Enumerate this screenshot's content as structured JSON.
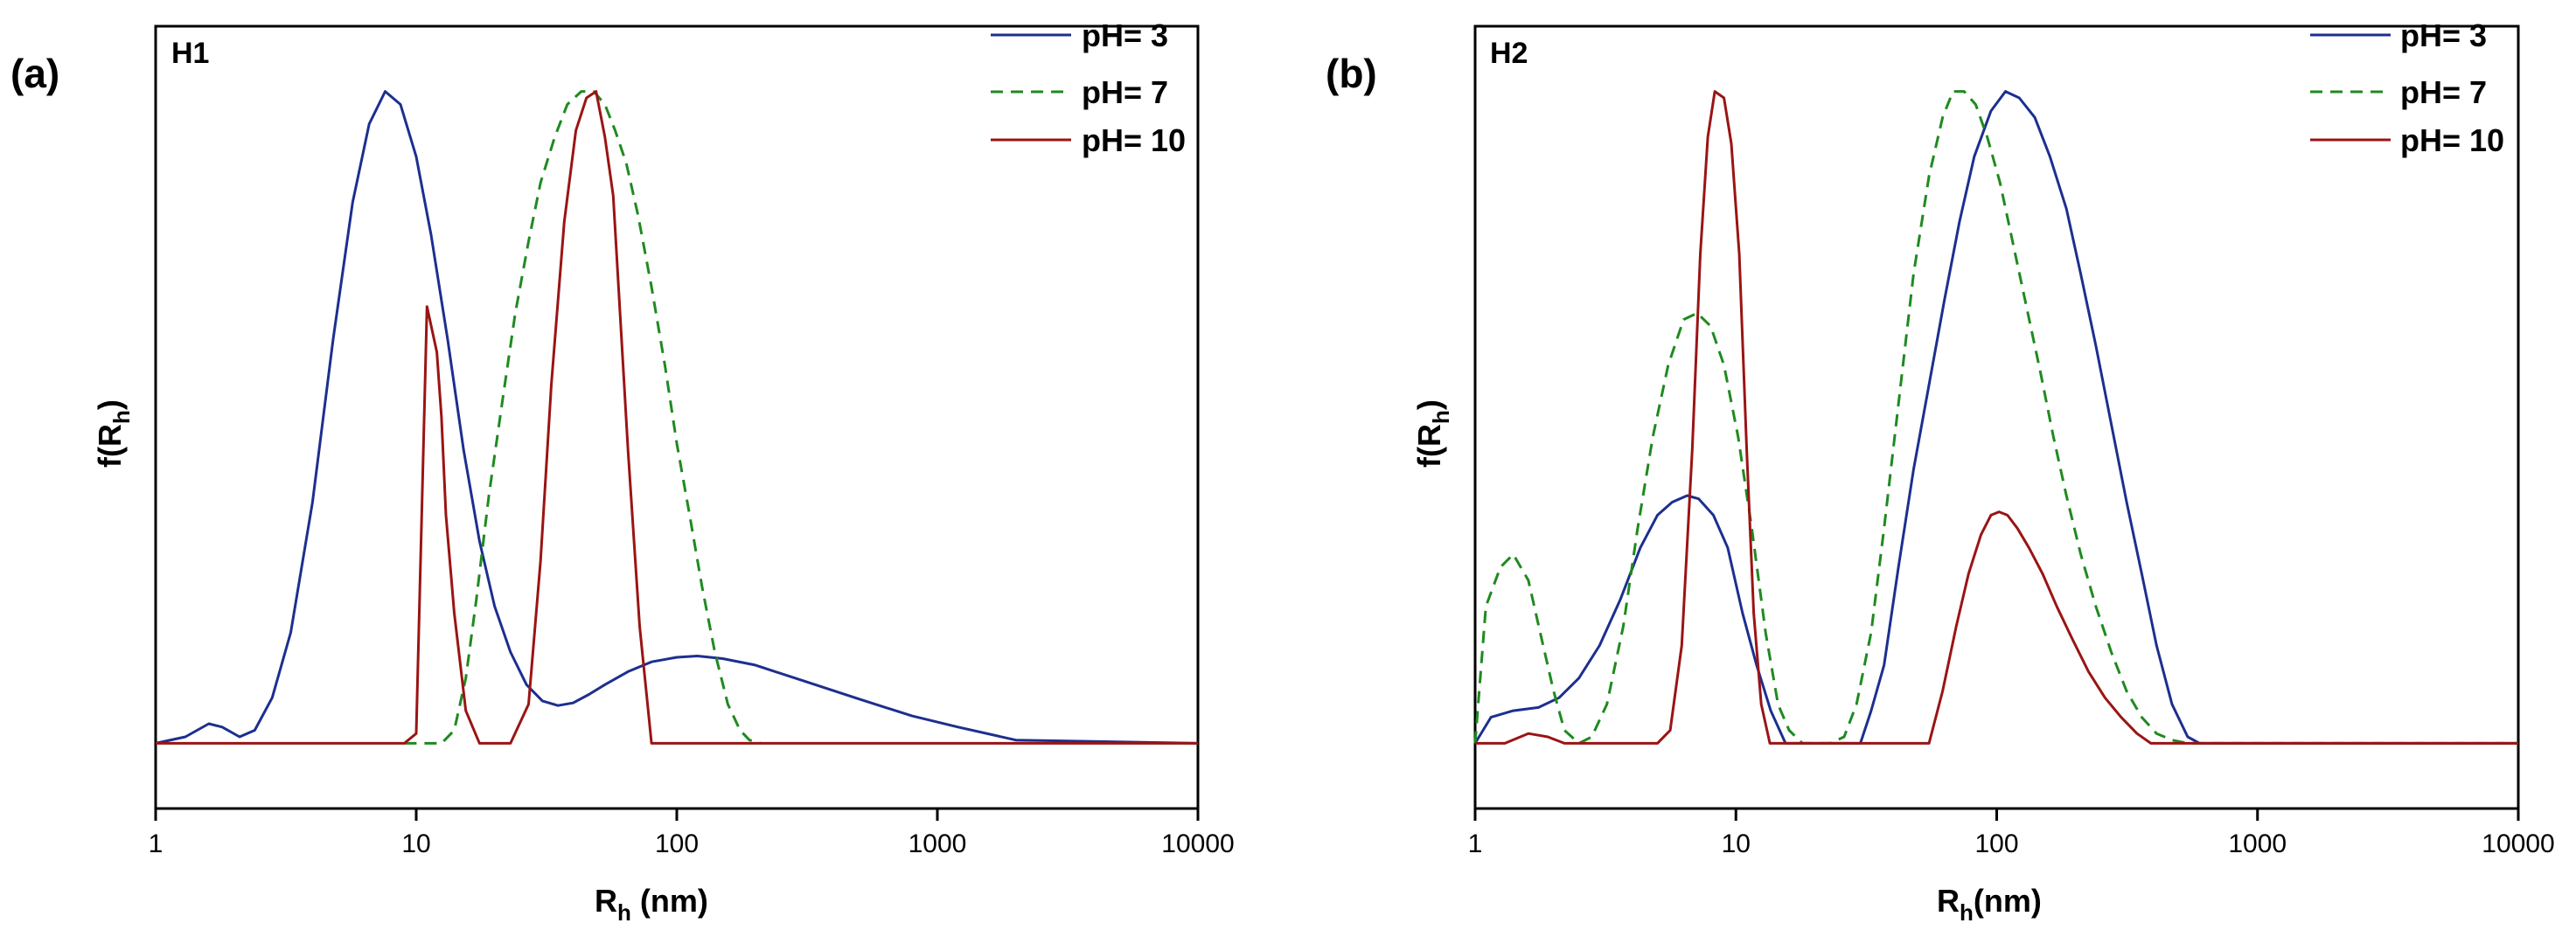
{
  "chart_data": [
    {
      "type": "line",
      "panel_label": "(a)",
      "title": "H1",
      "xlabel": "R",
      "xlabel_sub": "h",
      "xlabel_units": " (nm)",
      "ylabel": "f(R",
      "ylabel_sub": "h",
      "ylabel_close": ")",
      "xscale": "log",
      "xlim": [
        1,
        10000
      ],
      "ylim": [
        -0.1,
        1.1
      ],
      "x_ticks": [
        1,
        10,
        100,
        1000,
        10000
      ],
      "x_tick_labels": [
        "1",
        "10",
        "100",
        "1000",
        "10000"
      ],
      "y_ticks_shown": false,
      "legend_position": "top-right",
      "series": [
        {
          "name": "pH= 3",
          "color": "#1c2f8f",
          "dash": "solid",
          "x": [
            1,
            1.3,
            1.6,
            1.8,
            2.1,
            2.4,
            2.8,
            3.3,
            4,
            4.8,
            5.7,
            6.6,
            7.6,
            8.7,
            10,
            11.4,
            13.2,
            15.2,
            17.5,
            20,
            23,
            26.5,
            30.5,
            35,
            40,
            46,
            53,
            65,
            80,
            100,
            120,
            150,
            200,
            300,
            500,
            800,
            1200,
            2000,
            10000
          ],
          "y": [
            0,
            0.01,
            0.03,
            0.025,
            0.01,
            0.02,
            0.07,
            0.17,
            0.37,
            0.62,
            0.83,
            0.95,
            1.0,
            0.98,
            0.9,
            0.78,
            0.62,
            0.45,
            0.31,
            0.21,
            0.14,
            0.09,
            0.065,
            0.058,
            0.062,
            0.075,
            0.09,
            0.11,
            0.125,
            0.132,
            0.134,
            0.13,
            0.12,
            0.097,
            0.068,
            0.042,
            0.025,
            0.005,
            0.0
          ]
        },
        {
          "name": "pH= 7",
          "color": "#1f8a1f",
          "dash": "dashed",
          "x": [
            9,
            10,
            11,
            12.5,
            14,
            15.5,
            17,
            19,
            21.5,
            24,
            27,
            30,
            34,
            38,
            43,
            48,
            53,
            58,
            64,
            71,
            80,
            90,
            100,
            112,
            125,
            140,
            157,
            175,
            190,
            210
          ],
          "y": [
            0,
            0,
            0,
            0,
            0.02,
            0.1,
            0.22,
            0.38,
            0.53,
            0.66,
            0.77,
            0.86,
            0.93,
            0.98,
            1.0,
            1.0,
            0.98,
            0.94,
            0.89,
            0.81,
            0.7,
            0.58,
            0.46,
            0.35,
            0.24,
            0.14,
            0.06,
            0.02,
            0.005,
            0.0
          ]
        },
        {
          "name": "pH= 10",
          "color": "#9a1414",
          "dash": "solid",
          "x": [
            1,
            9,
            10,
            11,
            12,
            12.5,
            13,
            14,
            15.5,
            17.5,
            19,
            23,
            27,
            30,
            33,
            37,
            41,
            45,
            49,
            53,
            57,
            65,
            72,
            80,
            10000
          ],
          "y": [
            0,
            0,
            0.015,
            0.67,
            0.6,
            0.5,
            0.35,
            0.2,
            0.05,
            0,
            0,
            0,
            0.06,
            0.28,
            0.55,
            0.8,
            0.94,
            0.99,
            1.0,
            0.93,
            0.84,
            0.45,
            0.18,
            0.0,
            0
          ]
        }
      ]
    },
    {
      "type": "line",
      "panel_label": "(b)",
      "title": "H2",
      "xlabel": "R",
      "xlabel_sub": "h",
      "xlabel_units": "(nm)",
      "ylabel": "f(R",
      "ylabel_sub": "h",
      "ylabel_close": ")",
      "xscale": "log",
      "xlim": [
        1,
        10000
      ],
      "ylim": [
        -0.1,
        1.1
      ],
      "x_ticks": [
        1,
        10,
        100,
        1000,
        10000
      ],
      "x_tick_labels": [
        "1",
        "10",
        "100",
        "1000",
        "10000"
      ],
      "y_ticks_shown": false,
      "legend_position": "top-right",
      "series": [
        {
          "name": "pH= 3",
          "color": "#1c2f8f",
          "dash": "solid",
          "x": [
            1,
            1.15,
            1.4,
            1.75,
            2.1,
            2.5,
            3,
            3.6,
            4.3,
            5,
            5.7,
            6.5,
            7.2,
            8.2,
            9.3,
            10.6,
            12,
            13.6,
            15.5,
            17.5,
            20,
            23,
            26,
            30,
            33,
            37,
            42,
            48,
            55,
            63,
            72,
            82,
            95,
            108,
            122,
            140,
            160,
            185,
            210,
            240,
            275,
            315,
            360,
            410,
            470,
            540,
            600,
            10000
          ],
          "y": [
            0,
            0.04,
            0.05,
            0.055,
            0.07,
            0.1,
            0.15,
            0.22,
            0.3,
            0.35,
            0.37,
            0.38,
            0.375,
            0.35,
            0.3,
            0.2,
            0.12,
            0.05,
            0.0,
            0,
            0,
            0,
            0,
            0,
            0.05,
            0.12,
            0.27,
            0.42,
            0.55,
            0.68,
            0.8,
            0.9,
            0.97,
            1.0,
            0.99,
            0.96,
            0.9,
            0.82,
            0.72,
            0.61,
            0.49,
            0.37,
            0.26,
            0.15,
            0.06,
            0.01,
            0,
            0
          ]
        },
        {
          "name": "pH= 7",
          "color": "#1f8a1f",
          "dash": "dashed",
          "x": [
            1,
            1.1,
            1.25,
            1.4,
            1.6,
            1.8,
            2,
            2.2,
            2.5,
            2.8,
            3.2,
            3.7,
            4.2,
            4.8,
            5.5,
            6.3,
            7.1,
            8,
            9,
            10.2,
            11.5,
            13,
            14.5,
            16,
            18,
            20,
            23,
            26,
            29,
            33,
            37,
            42,
            48,
            55,
            62,
            68,
            75,
            83,
            92,
            103,
            115,
            130,
            147,
            165,
            185,
            210,
            240,
            275,
            315,
            360,
            410,
            470,
            540,
            10000
          ],
          "y": [
            0,
            0.21,
            0.27,
            0.29,
            0.25,
            0.16,
            0.08,
            0.02,
            0,
            0.01,
            0.06,
            0.18,
            0.33,
            0.47,
            0.58,
            0.65,
            0.66,
            0.64,
            0.58,
            0.47,
            0.33,
            0.17,
            0.06,
            0.02,
            0,
            0,
            0,
            0.01,
            0.06,
            0.17,
            0.33,
            0.52,
            0.72,
            0.87,
            0.96,
            1.0,
            1.0,
            0.98,
            0.93,
            0.86,
            0.77,
            0.67,
            0.57,
            0.47,
            0.38,
            0.29,
            0.21,
            0.14,
            0.08,
            0.04,
            0.015,
            0.005,
            0,
            0
          ]
        },
        {
          "name": "pH= 10",
          "color": "#9a1414",
          "dash": "solid",
          "x": [
            1,
            1.3,
            1.6,
            1.9,
            2.2,
            5,
            5.6,
            6.2,
            6.8,
            7.3,
            7.8,
            8.3,
            9,
            9.6,
            10.3,
            11,
            11.7,
            12.5,
            13.5,
            20,
            40,
            55,
            62,
            70,
            78,
            87,
            95,
            102,
            110,
            120,
            133,
            150,
            170,
            195,
            225,
            260,
            300,
            345,
            390,
            10000
          ],
          "y": [
            0,
            0,
            0.015,
            0.01,
            0,
            0,
            0.02,
            0.15,
            0.45,
            0.75,
            0.93,
            1.0,
            0.99,
            0.92,
            0.75,
            0.45,
            0.2,
            0.06,
            0,
            0,
            0,
            0,
            0.08,
            0.18,
            0.26,
            0.32,
            0.35,
            0.355,
            0.35,
            0.33,
            0.3,
            0.26,
            0.21,
            0.16,
            0.11,
            0.07,
            0.04,
            0.015,
            0,
            0
          ]
        }
      ]
    }
  ]
}
